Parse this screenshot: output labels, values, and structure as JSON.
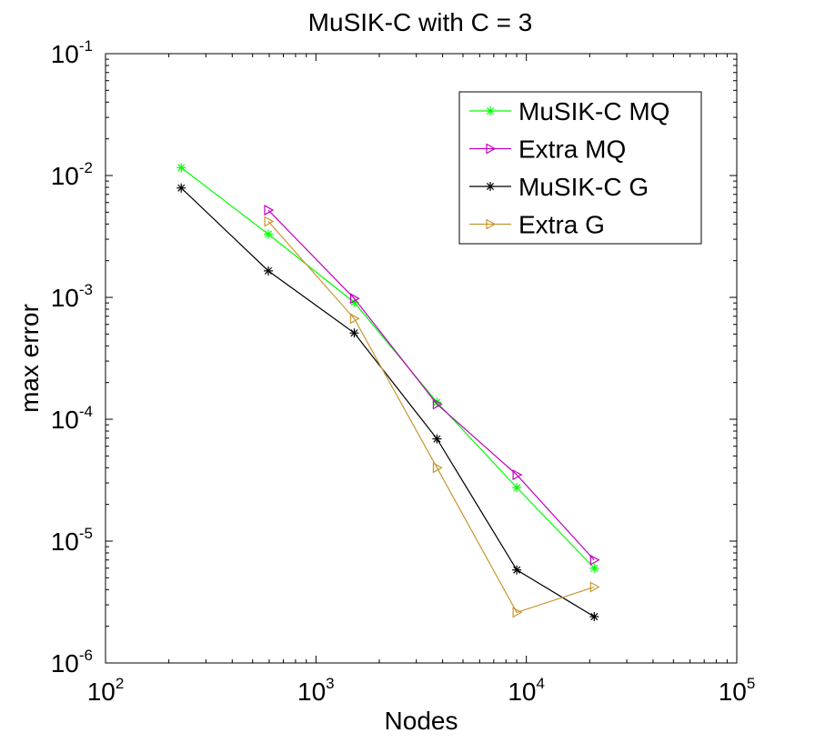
{
  "chart_data": {
    "type": "line",
    "title": "MuSIK-C with C = 3",
    "xlabel": "Nodes",
    "ylabel": "max error",
    "xscale": "log",
    "yscale": "log",
    "xlim": [
      100,
      100000
    ],
    "ylim": [
      1e-06,
      0.1
    ],
    "x_ticks": [
      {
        "base": "10",
        "exp": "2"
      },
      {
        "base": "10",
        "exp": "3"
      },
      {
        "base": "10",
        "exp": "4"
      },
      {
        "base": "10",
        "exp": "5"
      }
    ],
    "y_ticks": [
      {
        "base": "10",
        "exp": "-6"
      },
      {
        "base": "10",
        "exp": "-5"
      },
      {
        "base": "10",
        "exp": "-4"
      },
      {
        "base": "10",
        "exp": "-3"
      },
      {
        "base": "10",
        "exp": "-2"
      },
      {
        "base": "10",
        "exp": "-1"
      }
    ],
    "grid": false,
    "legend_position": "top-right",
    "series": [
      {
        "name": "MuSIK-C MQ",
        "color": "#00ff00",
        "marker": "asterisk",
        "x": [
          229,
          594,
          1521,
          3761,
          9003,
          21021
        ],
        "y": [
          0.0116,
          0.0033,
          0.00091,
          0.000138,
          2.75e-05,
          6e-06
        ]
      },
      {
        "name": "Extra MQ",
        "color": "#bf00bf",
        "marker": "triangle-right",
        "x": [
          594,
          1521,
          3761,
          9003,
          21021
        ],
        "y": [
          0.0052,
          0.00098,
          0.000133,
          3.5e-05,
          7e-06
        ]
      },
      {
        "name": "MuSIK-C G",
        "color": "#000000",
        "marker": "asterisk",
        "x": [
          229,
          594,
          1521,
          3761,
          9003,
          21021
        ],
        "y": [
          0.0079,
          0.00165,
          0.00051,
          6.9e-05,
          5.8e-06,
          2.4e-06
        ]
      },
      {
        "name": "Extra G",
        "color": "#c89632",
        "marker": "triangle-right",
        "x": [
          594,
          1521,
          3761,
          9003,
          21021
        ],
        "y": [
          0.0042,
          0.00067,
          4e-05,
          2.6e-06,
          4.2e-06
        ]
      }
    ]
  }
}
